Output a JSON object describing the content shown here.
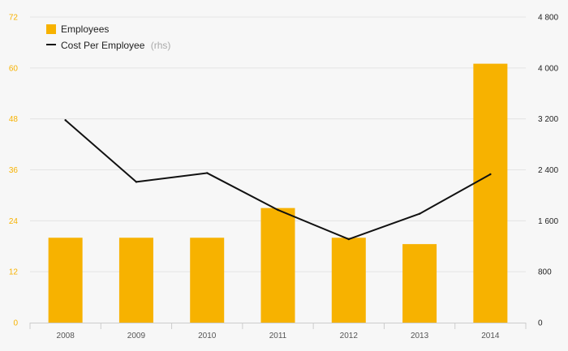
{
  "colors": {
    "bar": "#f7b200",
    "line": "#111111",
    "left_axis_text": "#f7b200",
    "right_axis_text": "#222222",
    "grid": "#e4e4e4",
    "axis": "#cccccc",
    "background": "#f7f7f7"
  },
  "legend": {
    "bar_label": "Employees",
    "line_label": "Cost Per Employee",
    "line_suffix": "(rhs)"
  },
  "chart_data": {
    "type": "bar",
    "categories": [
      "2008",
      "2009",
      "2010",
      "2011",
      "2012",
      "2013",
      "2014"
    ],
    "series": [
      {
        "name": "Employees",
        "type": "bar",
        "axis": "left",
        "values": [
          20,
          20,
          20,
          27,
          20,
          18.5,
          61
        ]
      },
      {
        "name": "Cost Per Employee (rhs)",
        "type": "line",
        "axis": "right",
        "values": [
          3180,
          2210,
          2350,
          1770,
          1310,
          1710,
          2330
        ]
      }
    ],
    "y_left": {
      "ylim": [
        0,
        72
      ],
      "ticks": [
        "0",
        "12",
        "24",
        "36",
        "48",
        "60",
        "72"
      ]
    },
    "y_right": {
      "ylim": [
        0,
        4800
      ],
      "ticks": [
        "0",
        "800",
        "1 600",
        "2 400",
        "3 200",
        "4 000",
        "4 800"
      ]
    },
    "grid": true,
    "legend_position": "top-left"
  }
}
